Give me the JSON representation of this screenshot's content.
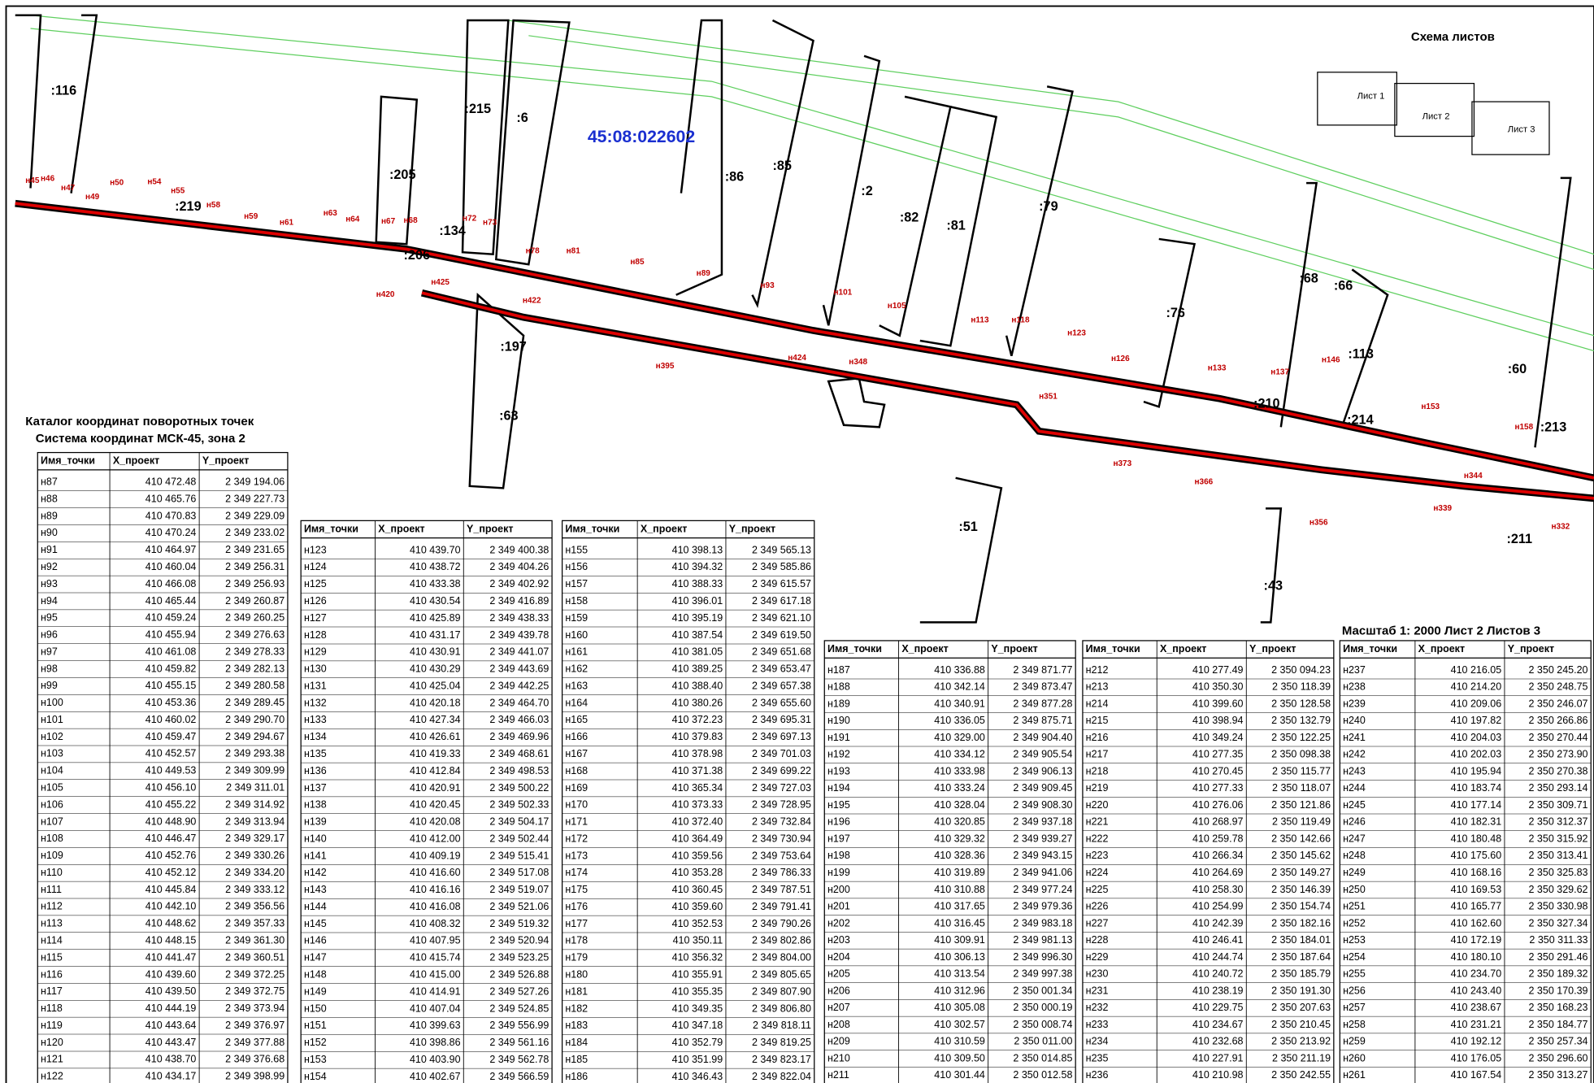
{
  "map": {
    "cadastral_block": "45:08:022602",
    "sheet_scheme_title": "Схема листов",
    "sheets": [
      "Лист 1",
      "Лист 2",
      "Лист 3"
    ],
    "scale_note": "Масштаб 1: 2000  Лист 2 Листов 3",
    "parcel_labels": [
      ":116",
      ":219",
      ":205",
      ":215",
      ":6",
      ":86",
      ":85",
      ":2",
      ":82",
      ":81",
      ":79",
      ":76",
      ":68",
      ":66",
      ":113",
      ":60",
      ":134",
      ":206",
      ":197",
      ":63",
      ":51",
      ":43",
      ":210",
      ":214",
      ":213",
      ":211"
    ],
    "point_labels": [
      "н45",
      "н46",
      "н47",
      "н49",
      "н50",
      "н54",
      "н55",
      "н58",
      "н59",
      "н61",
      "н63",
      "н64",
      "н67",
      "н68",
      "н72",
      "н73",
      "н78",
      "н81",
      "н85",
      "н89",
      "н93",
      "н101",
      "н105",
      "н113",
      "н118",
      "н123",
      "н126",
      "н133",
      "н137",
      "н146",
      "н153",
      "н158",
      "н420",
      "н425",
      "н422",
      "н395",
      "н424",
      "н348",
      "н351",
      "н373",
      "н366",
      "н356",
      "н344",
      "н339",
      "н332"
    ]
  },
  "catalog": {
    "title": "Каталог координат поворотных точек",
    "subtitle": "Система координат  МСК-45, зона 2"
  },
  "tables": [
    {
      "headers": [
        "Имя_точки",
        "X_проект",
        "Y_проект"
      ],
      "rows": [
        [
          "н87",
          "410 472.48",
          "2 349 194.06"
        ],
        [
          "н88",
          "410 465.76",
          "2 349 227.73"
        ],
        [
          "н89",
          "410 470.83",
          "2 349 229.09"
        ],
        [
          "н90",
          "410 470.24",
          "2 349 233.02"
        ],
        [
          "н91",
          "410 464.97",
          "2 349 231.65"
        ],
        [
          "н92",
          "410 460.04",
          "2 349 256.31"
        ],
        [
          "н93",
          "410 466.08",
          "2 349 256.93"
        ],
        [
          "н94",
          "410 465.44",
          "2 349 260.87"
        ],
        [
          "н95",
          "410 459.24",
          "2 349 260.25"
        ],
        [
          "н96",
          "410 455.94",
          "2 349 276.63"
        ],
        [
          "н97",
          "410 461.08",
          "2 349 278.33"
        ],
        [
          "н98",
          "410 459.82",
          "2 349 282.13"
        ],
        [
          "н99",
          "410 455.15",
          "2 349 280.58"
        ],
        [
          "н100",
          "410 453.36",
          "2 349 289.45"
        ],
        [
          "н101",
          "410 460.02",
          "2 349 290.70"
        ],
        [
          "н102",
          "410 459.47",
          "2 349 294.67"
        ],
        [
          "н103",
          "410 452.57",
          "2 349 293.38"
        ],
        [
          "н104",
          "410 449.53",
          "2 349 309.99"
        ],
        [
          "н105",
          "410 456.10",
          "2 349 311.01"
        ],
        [
          "н106",
          "410 455.22",
          "2 349 314.92"
        ],
        [
          "н107",
          "410 448.90",
          "2 349 313.94"
        ],
        [
          "н108",
          "410 446.47",
          "2 349 329.17"
        ],
        [
          "н109",
          "410 452.76",
          "2 349 330.26"
        ],
        [
          "н110",
          "410 452.12",
          "2 349 334.20"
        ],
        [
          "н111",
          "410 445.84",
          "2 349 333.12"
        ],
        [
          "н112",
          "410 442.10",
          "2 349 356.56"
        ],
        [
          "н113",
          "410 448.62",
          "2 349 357.33"
        ],
        [
          "н114",
          "410 448.15",
          "2 349 361.30"
        ],
        [
          "н115",
          "410 441.47",
          "2 349 360.51"
        ],
        [
          "н116",
          "410 439.60",
          "2 349 372.25"
        ],
        [
          "н117",
          "410 439.50",
          "2 349 372.75"
        ],
        [
          "н118",
          "410 444.19",
          "2 349 373.94"
        ],
        [
          "н119",
          "410 443.64",
          "2 349 376.97"
        ],
        [
          "н120",
          "410 443.47",
          "2 349 377.88"
        ],
        [
          "н121",
          "410 438.70",
          "2 349 376.68"
        ],
        [
          "н122",
          "410 434.17",
          "2 349 398.99"
        ]
      ]
    },
    {
      "headers": [
        "Имя_точки",
        "X_проект",
        "Y_проект"
      ],
      "rows": [
        [
          "н123",
          "410 439.70",
          "2 349 400.38"
        ],
        [
          "н124",
          "410 438.72",
          "2 349 404.26"
        ],
        [
          "н125",
          "410 433.38",
          "2 349 402.92"
        ],
        [
          "н126",
          "410 430.54",
          "2 349 416.89"
        ],
        [
          "н127",
          "410 425.89",
          "2 349 438.33"
        ],
        [
          "н128",
          "410 431.17",
          "2 349 439.78"
        ],
        [
          "н129",
          "410 430.91",
          "2 349 441.07"
        ],
        [
          "н130",
          "410 430.29",
          "2 349 443.69"
        ],
        [
          "н131",
          "410 425.04",
          "2 349 442.25"
        ],
        [
          "н132",
          "410 420.18",
          "2 349 464.70"
        ],
        [
          "н133",
          "410 427.34",
          "2 349 466.03"
        ],
        [
          "н134",
          "410 426.61",
          "2 349 469.96"
        ],
        [
          "н135",
          "410 419.33",
          "2 349 468.61"
        ],
        [
          "н136",
          "410 412.84",
          "2 349 498.53"
        ],
        [
          "н137",
          "410 420.91",
          "2 349 500.22"
        ],
        [
          "н138",
          "410 420.45",
          "2 349 502.33"
        ],
        [
          "н139",
          "410 420.08",
          "2 349 504.17"
        ],
        [
          "н140",
          "410 412.00",
          "2 349 502.44"
        ],
        [
          "н141",
          "410 409.19",
          "2 349 515.41"
        ],
        [
          "н142",
          "410 416.60",
          "2 349 517.08"
        ],
        [
          "н143",
          "410 416.16",
          "2 349 519.07"
        ],
        [
          "н144",
          "410 416.08",
          "2 349 521.06"
        ],
        [
          "н145",
          "410 408.32",
          "2 349 519.32"
        ],
        [
          "н146",
          "410 407.95",
          "2 349 520.94"
        ],
        [
          "н147",
          "410 415.74",
          "2 349 523.25"
        ],
        [
          "н148",
          "410 415.00",
          "2 349 526.88"
        ],
        [
          "н149",
          "410 414.91",
          "2 349 527.26"
        ],
        [
          "н150",
          "410 407.04",
          "2 349 524.85"
        ],
        [
          "н151",
          "410 399.63",
          "2 349 556.99"
        ],
        [
          "н152",
          "410 398.86",
          "2 349 561.16"
        ],
        [
          "н153",
          "410 403.90",
          "2 349 562.78"
        ],
        [
          "н154",
          "410 402.67",
          "2 349 566.59"
        ]
      ]
    },
    {
      "headers": [
        "Имя_точки",
        "X_проект",
        "Y_проект"
      ],
      "rows": [
        [
          "н155",
          "410 398.13",
          "2 349 565.13"
        ],
        [
          "н156",
          "410 394.32",
          "2 349 585.86"
        ],
        [
          "н157",
          "410 388.33",
          "2 349 615.57"
        ],
        [
          "н158",
          "410 396.01",
          "2 349 617.18"
        ],
        [
          "н159",
          "410 395.19",
          "2 349 621.10"
        ],
        [
          "н160",
          "410 387.54",
          "2 349 619.50"
        ],
        [
          "н161",
          "410 381.05",
          "2 349 651.68"
        ],
        [
          "н162",
          "410 389.25",
          "2 349 653.47"
        ],
        [
          "н163",
          "410 388.40",
          "2 349 657.38"
        ],
        [
          "н164",
          "410 380.26",
          "2 349 655.60"
        ],
        [
          "н165",
          "410 372.23",
          "2 349 695.31"
        ],
        [
          "н166",
          "410 379.83",
          "2 349 697.13"
        ],
        [
          "н167",
          "410 378.98",
          "2 349 701.03"
        ],
        [
          "н168",
          "410 371.38",
          "2 349 699.22"
        ],
        [
          "н169",
          "410 365.34",
          "2 349 727.03"
        ],
        [
          "н170",
          "410 373.33",
          "2 349 728.95"
        ],
        [
          "н171",
          "410 372.40",
          "2 349 732.84"
        ],
        [
          "н172",
          "410 364.49",
          "2 349 730.94"
        ],
        [
          "н173",
          "410 359.56",
          "2 349 753.64"
        ],
        [
          "н174",
          "410 353.28",
          "2 349 786.33"
        ],
        [
          "н175",
          "410 360.45",
          "2 349 787.51"
        ],
        [
          "н176",
          "410 359.60",
          "2 349 791.41"
        ],
        [
          "н177",
          "410 352.53",
          "2 349 790.26"
        ],
        [
          "н178",
          "410 350.11",
          "2 349 802.86"
        ],
        [
          "н179",
          "410 356.32",
          "2 349 804.00"
        ],
        [
          "н180",
          "410 355.91",
          "2 349 805.65"
        ],
        [
          "н181",
          "410 355.35",
          "2 349 807.90"
        ],
        [
          "н182",
          "410 349.35",
          "2 349 806.80"
        ],
        [
          "н183",
          "410 347.18",
          "2 349 818.11"
        ],
        [
          "н184",
          "410 352.79",
          "2 349 819.25"
        ],
        [
          "н185",
          "410 351.99",
          "2 349 823.17"
        ],
        [
          "н186",
          "410 346.43",
          "2 349 822.04"
        ]
      ]
    },
    {
      "headers": [
        "Имя_точки",
        "X_проект",
        "Y_проект"
      ],
      "rows": [
        [
          "н187",
          "410 336.88",
          "2 349 871.77"
        ],
        [
          "н188",
          "410 342.14",
          "2 349 873.47"
        ],
        [
          "н189",
          "410 340.91",
          "2 349 877.28"
        ],
        [
          "н190",
          "410 336.05",
          "2 349 875.71"
        ],
        [
          "н191",
          "410 329.00",
          "2 349 904.40"
        ],
        [
          "н192",
          "410 334.12",
          "2 349 905.54"
        ],
        [
          "н193",
          "410 333.98",
          "2 349 906.13"
        ],
        [
          "н194",
          "410 333.24",
          "2 349 909.45"
        ],
        [
          "н195",
          "410 328.04",
          "2 349 908.30"
        ],
        [
          "н196",
          "410 320.85",
          "2 349 937.18"
        ],
        [
          "н197",
          "410 329.32",
          "2 349 939.27"
        ],
        [
          "н198",
          "410 328.36",
          "2 349 943.15"
        ],
        [
          "н199",
          "410 319.89",
          "2 349 941.06"
        ],
        [
          "н200",
          "410 310.88",
          "2 349 977.24"
        ],
        [
          "н201",
          "410 317.65",
          "2 349 979.36"
        ],
        [
          "н202",
          "410 316.45",
          "2 349 983.18"
        ],
        [
          "н203",
          "410 309.91",
          "2 349 981.13"
        ],
        [
          "н204",
          "410 306.13",
          "2 349 996.30"
        ],
        [
          "н205",
          "410 313.54",
          "2 349 997.38"
        ],
        [
          "н206",
          "410 312.96",
          "2 350 001.34"
        ],
        [
          "н207",
          "410 305.08",
          "2 350 000.19"
        ],
        [
          "н208",
          "410 302.57",
          "2 350 008.74"
        ],
        [
          "н209",
          "410 310.59",
          "2 350 011.00"
        ],
        [
          "н210",
          "410 309.50",
          "2 350 014.85"
        ],
        [
          "н211",
          "410 301.44",
          "2 350 012.58"
        ]
      ]
    },
    {
      "headers": [
        "Имя_точки",
        "X_проект",
        "Y_проект"
      ],
      "rows": [
        [
          "н212",
          "410 277.49",
          "2 350 094.23"
        ],
        [
          "н213",
          "410 350.30",
          "2 350 118.39"
        ],
        [
          "н214",
          "410 399.60",
          "2 350 128.58"
        ],
        [
          "н215",
          "410 398.94",
          "2 350 132.79"
        ],
        [
          "н216",
          "410 349.24",
          "2 350 122.25"
        ],
        [
          "н217",
          "410 277.35",
          "2 350 098.38"
        ],
        [
          "н218",
          "410 270.45",
          "2 350 115.77"
        ],
        [
          "н219",
          "410 277.33",
          "2 350 118.07"
        ],
        [
          "н220",
          "410 276.06",
          "2 350 121.86"
        ],
        [
          "н221",
          "410 268.97",
          "2 350 119.49"
        ],
        [
          "н222",
          "410 259.78",
          "2 350 142.66"
        ],
        [
          "н223",
          "410 266.34",
          "2 350 145.62"
        ],
        [
          "н224",
          "410 264.69",
          "2 350 149.27"
        ],
        [
          "н225",
          "410 258.30",
          "2 350 146.39"
        ],
        [
          "н226",
          "410 254.99",
          "2 350 154.74"
        ],
        [
          "н227",
          "410 242.39",
          "2 350 182.16"
        ],
        [
          "н228",
          "410 246.41",
          "2 350 184.01"
        ],
        [
          "н229",
          "410 244.74",
          "2 350 187.64"
        ],
        [
          "н230",
          "410 240.72",
          "2 350 185.79"
        ],
        [
          "н231",
          "410 238.19",
          "2 350 191.30"
        ],
        [
          "н232",
          "410 229.75",
          "2 350 207.63"
        ],
        [
          "н233",
          "410 234.67",
          "2 350 210.45"
        ],
        [
          "н234",
          "410 232.68",
          "2 350 213.92"
        ],
        [
          "н235",
          "410 227.91",
          "2 350 211.19"
        ],
        [
          "н236",
          "410 210.98",
          "2 350 242.55"
        ]
      ]
    },
    {
      "headers": [
        "Имя_точки",
        "X_проект",
        "Y_проект"
      ],
      "rows": [
        [
          "н237",
          "410 216.05",
          "2 350 245.20"
        ],
        [
          "н238",
          "410 214.20",
          "2 350 248.75"
        ],
        [
          "н239",
          "410 209.06",
          "2 350 246.07"
        ],
        [
          "н240",
          "410 197.82",
          "2 350 266.86"
        ],
        [
          "н241",
          "410 204.03",
          "2 350 270.44"
        ],
        [
          "н242",
          "410 202.03",
          "2 350 273.90"
        ],
        [
          "н243",
          "410 195.94",
          "2 350 270.38"
        ],
        [
          "н244",
          "410 183.74",
          "2 350 293.14"
        ],
        [
          "н245",
          "410 177.14",
          "2 350 309.71"
        ],
        [
          "н246",
          "410 182.31",
          "2 350 312.37"
        ],
        [
          "н247",
          "410 180.48",
          "2 350 315.92"
        ],
        [
          "н248",
          "410 175.60",
          "2 350 313.41"
        ],
        [
          "н249",
          "410 168.16",
          "2 350 325.83"
        ],
        [
          "н250",
          "410 169.53",
          "2 350 329.62"
        ],
        [
          "н251",
          "410 165.77",
          "2 350 330.98"
        ],
        [
          "н252",
          "410 162.60",
          "2 350 327.34"
        ],
        [
          "н253",
          "410 172.19",
          "2 350 311.33"
        ],
        [
          "н254",
          "410 180.10",
          "2 350 291.46"
        ],
        [
          "н255",
          "410 234.70",
          "2 350 189.32"
        ],
        [
          "н256",
          "410 243.40",
          "2 350 170.39"
        ],
        [
          "н257",
          "410 238.67",
          "2 350 168.23"
        ],
        [
          "н258",
          "410 231.21",
          "2 350 184.77"
        ],
        [
          "н259",
          "410 192.12",
          "2 350 257.34"
        ],
        [
          "н260",
          "410 176.05",
          "2 350 296.60"
        ],
        [
          "н261",
          "410 167.54",
          "2 350 313.27"
        ]
      ]
    }
  ]
}
